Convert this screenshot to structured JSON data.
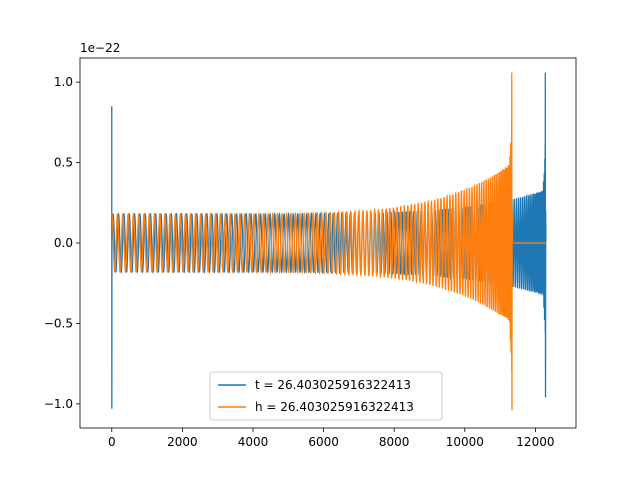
{
  "chart_data": {
    "type": "line",
    "title": "",
    "xlabel": "",
    "ylabel": "",
    "offset_label": "1e−22",
    "xlim": [
      -900,
      13150
    ],
    "ylim": [
      -1.15,
      1.15
    ],
    "xticks": [
      0,
      2000,
      4000,
      6000,
      8000,
      10000,
      12000
    ],
    "xtick_labels": [
      "0",
      "2000",
      "4000",
      "6000",
      "8000",
      "10000",
      "12000"
    ],
    "yticks": [
      -1.0,
      -0.5,
      0.0,
      0.5,
      1.0
    ],
    "ytick_labels": [
      "−1.0",
      "−0.5",
      "0.0",
      "0.5",
      "1.0"
    ],
    "grid": false,
    "legend_position": "bottom-center",
    "series": [
      {
        "name": "t = 26.403025916322413",
        "color": "#1f77b4",
        "description_points": {
          "x_start": 0,
          "chirp_start": 0,
          "merger_x": 12280,
          "x_end": 12310,
          "spike_at_start_max": 0.85,
          "spike_at_start_min": -1.03,
          "start_amplitude": 0.18,
          "pre_merger_amplitude": 0.33,
          "merger_peak_max": 1.06,
          "merger_peak_min": -0.96
        }
      },
      {
        "name": "h = 26.403025916322413",
        "color": "#ff7f0e",
        "description_points": {
          "x_start": 0,
          "flat_until": 0,
          "merger_x": 11330,
          "x_end": 12310,
          "start_amplitude": 0.18,
          "pre_merger_amplitude": 0.5,
          "merger_peak_max": 1.06,
          "merger_peak_min": -1.04
        }
      }
    ]
  }
}
